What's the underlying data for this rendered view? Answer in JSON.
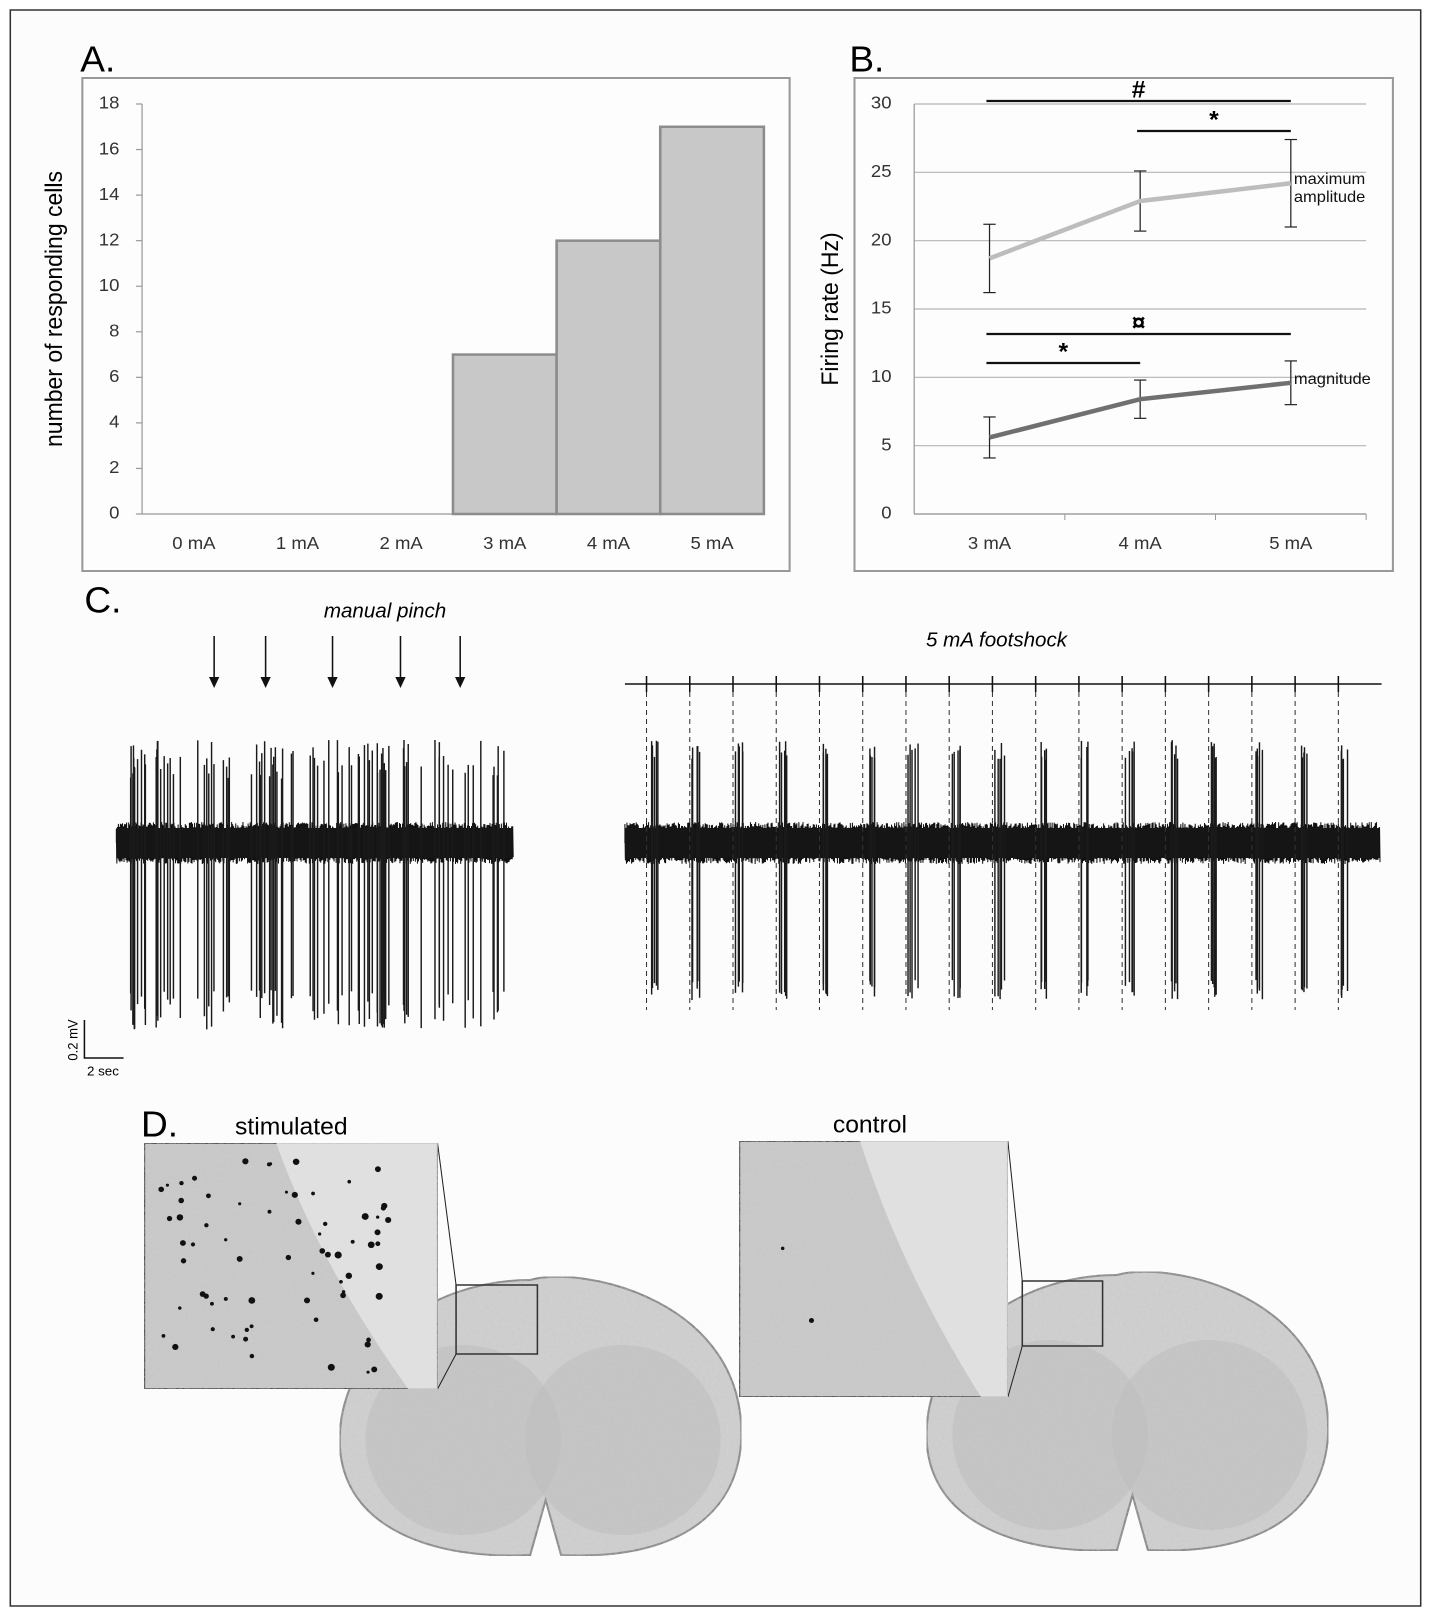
{
  "chart_data": [
    {
      "type": "bar",
      "panel_label": "A.",
      "ylabel": "number of responding cells",
      "categories": [
        "0 mA",
        "1 mA",
        "2 mA",
        "3 mA",
        "4 mA",
        "5 mA"
      ],
      "values": [
        0,
        0,
        0,
        7,
        12,
        17
      ],
      "color": "#c8c8c8",
      "ylim": [
        0,
        18
      ],
      "yticks": [
        0,
        2,
        4,
        6,
        8,
        10,
        12,
        14,
        16,
        18
      ]
    },
    {
      "type": "line",
      "panel_label": "B.",
      "ylabel": "Firing rate (Hz)",
      "categories": [
        "3 mA",
        "4 mA",
        "5 mA"
      ],
      "series": [
        {
          "name": "maximum amplitude",
          "color": "#bdbdbd",
          "values": [
            18.7,
            22.9,
            24.2
          ],
          "errors": [
            2.5,
            2.2,
            3.2
          ]
        },
        {
          "name": "magnitude",
          "color": "#707070",
          "values": [
            5.6,
            8.4,
            9.6
          ],
          "errors": [
            1.5,
            1.4,
            1.6
          ]
        }
      ],
      "ylim": [
        0,
        30
      ],
      "yticks": [
        0,
        5,
        10,
        15,
        20,
        25,
        30
      ],
      "grid": true,
      "annotations": [
        "#",
        "*",
        "¤",
        "*"
      ]
    }
  ],
  "panel_c": {
    "label": "C.",
    "left_title": "manual pinch",
    "right_title": "5 mA footshock",
    "scale_y": "0.2 mV",
    "scale_x": "2 sec"
  },
  "panel_d": {
    "label": "D.",
    "left_title": "stimulated",
    "right_title": "control"
  }
}
